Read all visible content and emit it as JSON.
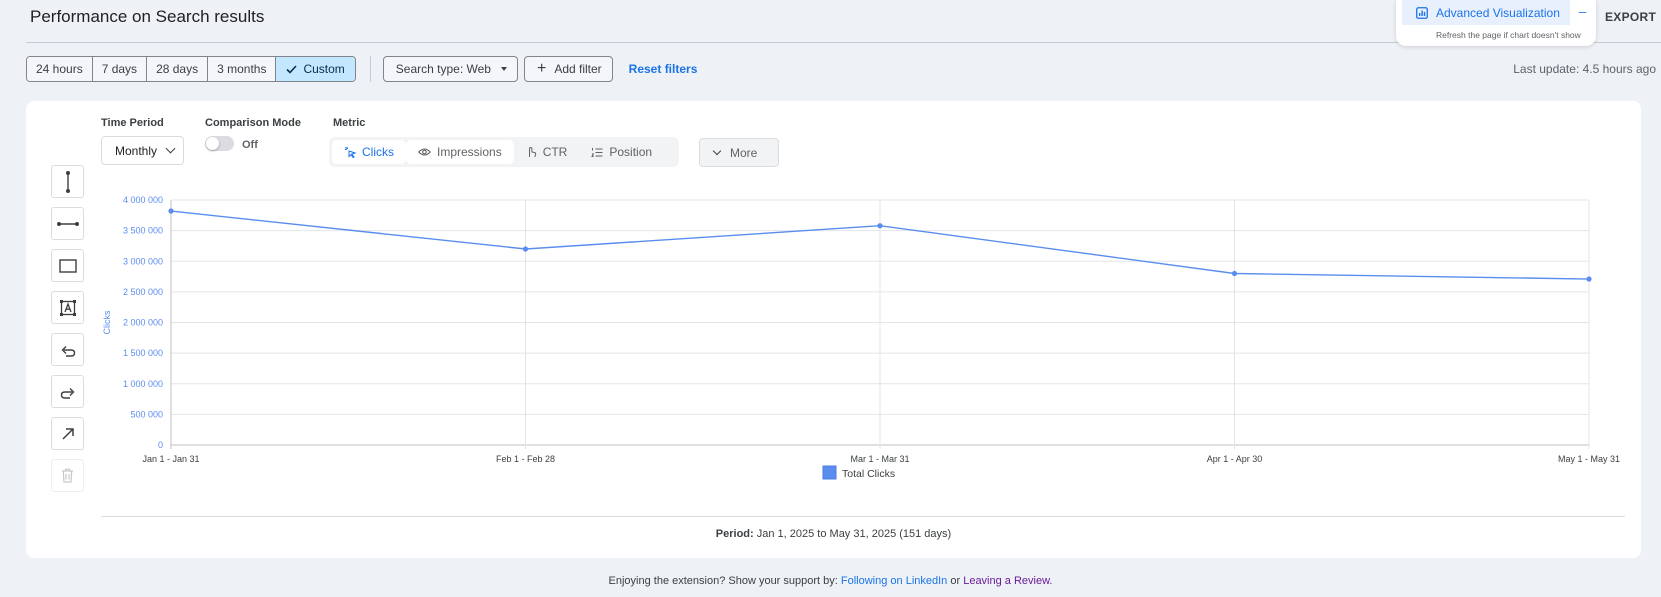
{
  "header": {
    "title": "Performance on Search results",
    "advanced_label": "Advanced Visualization",
    "advanced_note": "Refresh the page if chart doesn't show",
    "minimize_label": "–",
    "export_label": "EXPORT"
  },
  "filters": {
    "ranges": [
      {
        "label": "24 hours",
        "active": false
      },
      {
        "label": "7 days",
        "active": false
      },
      {
        "label": "28 days",
        "active": false
      },
      {
        "label": "3 months",
        "active": false
      },
      {
        "label": "Custom",
        "active": true
      }
    ],
    "search_type": "Search type: Web",
    "add_filter": "Add filter",
    "reset": "Reset filters",
    "last_update": "Last update: 4.5 hours ago"
  },
  "controls": {
    "time_period_label": "Time Period",
    "time_period_value": "Monthly",
    "comparison_label": "Comparison Mode",
    "comparison_value": "Off",
    "metric_label": "Metric",
    "metrics": [
      {
        "label": "Clicks",
        "icon": "click-icon",
        "active": true
      },
      {
        "label": "Impressions",
        "icon": "eye-icon",
        "active": false
      },
      {
        "label": "CTR",
        "icon": "pointer-icon",
        "active": false
      },
      {
        "label": "Position",
        "icon": "list-icon",
        "active": false
      }
    ],
    "more_label": "More"
  },
  "tools": [
    "vertical-line-icon",
    "horizontal-line-icon",
    "rectangle-icon",
    "text-box-icon",
    "undo-icon",
    "redo-icon",
    "arrow-icon",
    "trash-icon"
  ],
  "chart_data": {
    "type": "line",
    "categories": [
      "Jan 1 - Jan 31",
      "Feb 1 - Feb 28",
      "Mar 1 - Mar 31",
      "Apr 1 - Apr 30",
      "May 1 - May 31"
    ],
    "series": [
      {
        "name": "Total Clicks",
        "values": [
          3820000,
          3200000,
          3580000,
          2800000,
          2710000
        ],
        "color": "#5b8def"
      }
    ],
    "ylabel": "Clicks",
    "ylim": [
      0,
      4000000
    ],
    "yticks": [
      0,
      500000,
      1000000,
      1500000,
      2000000,
      2500000,
      3000000,
      3500000,
      4000000
    ],
    "ytick_labels": [
      "0",
      "500 000",
      "1 000 000",
      "1 500 000",
      "2 000 000",
      "2 500 000",
      "3 000 000",
      "3 500 000",
      "4 000 000"
    ],
    "grid": true,
    "legend": "bottom-center"
  },
  "period": {
    "label": "Period:",
    "value": "Jan 1, 2025 to May 31, 2025 (151 days)"
  },
  "footer": {
    "text": "Enjoying the extension? Show your support by:",
    "linkedin": "Following on LinkedIn",
    "or": "or",
    "review": "Leaving a Review."
  }
}
